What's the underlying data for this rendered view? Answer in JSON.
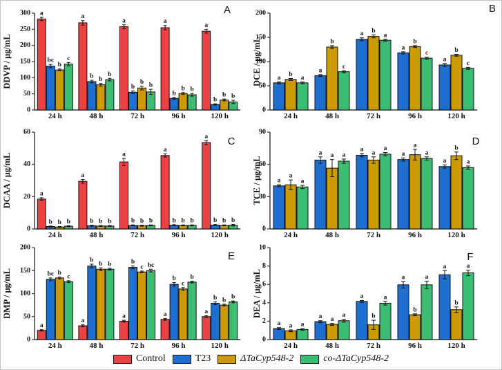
{
  "figure": {
    "background": "#ffffff"
  },
  "colors": {
    "control": "#ee4143",
    "t23": "#1e6fd2",
    "mutant": "#cc9a02",
    "co_mutant": "#3cbe72",
    "axis": "#333333",
    "text": "#111111",
    "red_letter": "#c02018"
  },
  "legend": {
    "items": [
      {
        "label": "Control",
        "color_key": "control",
        "italic": false
      },
      {
        "label": "T23",
        "color_key": "t23",
        "italic": false
      },
      {
        "label": "ΔTaCyp548-2",
        "color_key": "mutant",
        "italic": true
      },
      {
        "label": "co-ΔTaCyp548-2",
        "color_key": "co_mutant",
        "italic": true
      }
    ]
  },
  "chart_data": [
    {
      "panel_label": "A",
      "type": "bar",
      "ylabel": "DDVP / μg/mL",
      "ylim": [
        0,
        300
      ],
      "ytick_step": 50,
      "categories": [
        "24 h",
        "48 h",
        "72 h",
        "96 h",
        "120 h"
      ],
      "series": [
        {
          "name": "Control",
          "color_key": "control",
          "values": [
            282,
            270,
            258,
            255,
            244
          ],
          "errors": [
            5,
            7,
            6,
            7,
            6
          ],
          "letters": [
            "a",
            "a",
            "a",
            "a",
            "a"
          ]
        },
        {
          "name": "T23",
          "color_key": "t23",
          "values": [
            136,
            88,
            55,
            36,
            17
          ],
          "errors": [
            5,
            4,
            4,
            3,
            2
          ],
          "letters": [
            "bc",
            "b",
            "b",
            "b",
            "b"
          ]
        },
        {
          "name": "ΔTaCyp548-2",
          "color_key": "mutant",
          "values": [
            124,
            78,
            68,
            51,
            31
          ],
          "errors": [
            3,
            4,
            6,
            3,
            3
          ],
          "letters": [
            "b",
            "b",
            "b",
            "b",
            "b"
          ]
        },
        {
          "name": "co-ΔTaCyp548-2",
          "color_key": "co_mutant",
          "values": [
            142,
            94,
            56,
            47,
            25
          ],
          "errors": [
            5,
            4,
            8,
            4,
            5
          ],
          "letters": [
            "c",
            "b",
            "b",
            "b",
            "b"
          ]
        }
      ]
    },
    {
      "panel_label": "B",
      "type": "bar",
      "ylabel": "DCE / μg/mL",
      "ylim": [
        0,
        200
      ],
      "ytick_step": 50,
      "categories": [
        "24 h",
        "48 h",
        "72 h",
        "96 h",
        "120 h"
      ],
      "series": [
        {
          "name": "T23",
          "color_key": "t23",
          "values": [
            56,
            71,
            146,
            118,
            93
          ],
          "errors": [
            2,
            2,
            3,
            2,
            3
          ],
          "letters": [
            "a",
            "a",
            "a",
            "a",
            "a"
          ]
        },
        {
          "name": "ΔTaCyp548-2",
          "color_key": "mutant",
          "values": [
            63,
            130,
            152,
            131,
            113
          ],
          "errors": [
            2,
            3,
            3,
            2,
            2
          ],
          "letters": [
            "b",
            "b",
            "b",
            "b",
            "b"
          ]
        },
        {
          "name": "co-ΔTaCyp548-2",
          "color_key": "co_mutant",
          "values": [
            56,
            79,
            144,
            107,
            86
          ],
          "errors": [
            2,
            2,
            2,
            2,
            2
          ],
          "letters": [
            "a",
            "c",
            "a",
            "c",
            "c"
          ],
          "letter_colors": [
            null,
            null,
            null,
            "#c02018",
            null
          ]
        }
      ]
    },
    {
      "panel_label": "C",
      "type": "bar",
      "ylabel": "DCAA / μg/mL",
      "ylim": [
        0,
        60
      ],
      "ytick_step": 20,
      "categories": [
        "24 h",
        "48 h",
        "72 h",
        "96 h",
        "120 h"
      ],
      "series": [
        {
          "name": "Control",
          "color_key": "control",
          "values": [
            18.5,
            29.5,
            41.5,
            45.5,
            53.5
          ],
          "errors": [
            0.8,
            1.2,
            2.2,
            1.0,
            1.2
          ],
          "letters": [
            "a",
            "a",
            "a",
            "a",
            "a"
          ]
        },
        {
          "name": "T23",
          "color_key": "t23",
          "values": [
            1.5,
            2.0,
            2.2,
            2.3,
            2.4
          ],
          "errors": [
            0.3,
            0.3,
            0.3,
            0.3,
            0.3
          ],
          "letters": [
            "b",
            "b",
            "b",
            "b",
            "b"
          ]
        },
        {
          "name": "ΔTaCyp548-2",
          "color_key": "mutant",
          "values": [
            1.2,
            1.8,
            2.0,
            2.2,
            2.2
          ],
          "errors": [
            0.3,
            0.3,
            0.3,
            0.3,
            0.3
          ],
          "letters": [
            "b",
            "b",
            "b",
            "b",
            "b"
          ]
        },
        {
          "name": "co-ΔTaCyp548-2",
          "color_key": "co_mutant",
          "values": [
            1.7,
            1.8,
            2.2,
            2.2,
            2.3
          ],
          "errors": [
            0.3,
            0.3,
            0.3,
            0.3,
            0.5
          ],
          "letters": [
            "b",
            "b",
            "b",
            "b",
            "b"
          ]
        }
      ]
    },
    {
      "panel_label": "D",
      "type": "bar",
      "ylabel": "TCE / μg/mL",
      "ylim": [
        0,
        90
      ],
      "ytick_step": 30,
      "categories": [
        "24 h",
        "48 h",
        "72 h",
        "96 h",
        "120 h"
      ],
      "series": [
        {
          "name": "T23",
          "color_key": "t23",
          "values": [
            40,
            64,
            68.5,
            64.5,
            58
          ],
          "errors": [
            1,
            3,
            1.5,
            1.5,
            1.5
          ],
          "letters": [
            "a",
            "a",
            "a",
            "a",
            "a"
          ]
        },
        {
          "name": "ΔTaCyp548-2",
          "color_key": "mutant",
          "values": [
            41,
            56.5,
            64,
            69,
            68
          ],
          "errors": [
            4.5,
            8,
            3,
            5,
            3.5
          ],
          "letters": [
            "a",
            "a",
            "a",
            "a",
            "b"
          ]
        },
        {
          "name": "co-ΔTaCyp548-2",
          "color_key": "co_mutant",
          "values": [
            39,
            63,
            69.5,
            65.5,
            57
          ],
          "errors": [
            1.5,
            2,
            1.5,
            1.5,
            1.5
          ],
          "letters": [
            "a",
            "a",
            "a",
            "a",
            "a"
          ]
        }
      ]
    },
    {
      "panel_label": "E",
      "type": "bar",
      "ylabel": "DMP / μg/mL",
      "ylim": [
        0,
        200
      ],
      "ytick_step": 50,
      "categories": [
        "24 h",
        "48 h",
        "72 h",
        "96 h",
        "120 h"
      ],
      "series": [
        {
          "name": "Control",
          "color_key": "control",
          "values": [
            20,
            30,
            40,
            44,
            50
          ],
          "errors": [
            1.5,
            2,
            2,
            2,
            2
          ],
          "letters": [
            "a",
            "a",
            "a",
            "a",
            "a"
          ]
        },
        {
          "name": "T23",
          "color_key": "t23",
          "values": [
            131,
            160,
            157,
            120,
            79
          ],
          "errors": [
            3,
            4,
            3,
            4,
            3
          ],
          "letters": [
            "bc",
            "b",
            "b",
            "b",
            "b"
          ]
        },
        {
          "name": "ΔTaCyp548-2",
          "color_key": "mutant",
          "values": [
            134,
            153,
            147,
            110,
            75
          ],
          "errors": [
            2,
            3,
            2,
            3,
            2
          ],
          "letters": [
            "b",
            "b",
            "c",
            "c",
            "b"
          ]
        },
        {
          "name": "co-ΔTaCyp548-2",
          "color_key": "co_mutant",
          "values": [
            126,
            153,
            150,
            125,
            82
          ],
          "errors": [
            2,
            2,
            3,
            2,
            2
          ],
          "letters": [
            "c",
            "b",
            "bc",
            "b",
            "b"
          ]
        }
      ]
    },
    {
      "panel_label": "F",
      "type": "bar",
      "ylabel": "DEA / μg/mL",
      "ylim": [
        0,
        10
      ],
      "ytick_step": 2,
      "categories": [
        "24 h",
        "48 h",
        "72 h",
        "96 h",
        "120 h"
      ],
      "series": [
        {
          "name": "T23",
          "color_key": "t23",
          "values": [
            1.2,
            1.95,
            4.15,
            5.95,
            7.05
          ],
          "errors": [
            0.1,
            0.1,
            0.1,
            0.35,
            0.45
          ],
          "letters": [
            "a",
            "a",
            "a",
            "a",
            "a"
          ]
        },
        {
          "name": "ΔTaCyp548-2",
          "color_key": "mutant",
          "values": [
            0.95,
            1.65,
            1.6,
            2.7,
            3.25
          ],
          "errors": [
            0.1,
            0.1,
            0.5,
            0.1,
            0.3
          ],
          "letters": [
            "a",
            "a",
            "b",
            "b",
            "b"
          ]
        },
        {
          "name": "co-ΔTaCyp548-2",
          "color_key": "co_mutant",
          "values": [
            1.1,
            2.05,
            3.95,
            5.95,
            7.25
          ],
          "errors": [
            0.1,
            0.15,
            0.2,
            0.4,
            0.3
          ],
          "letters": [
            "a",
            "a",
            "a",
            "a",
            "a"
          ]
        }
      ]
    }
  ]
}
